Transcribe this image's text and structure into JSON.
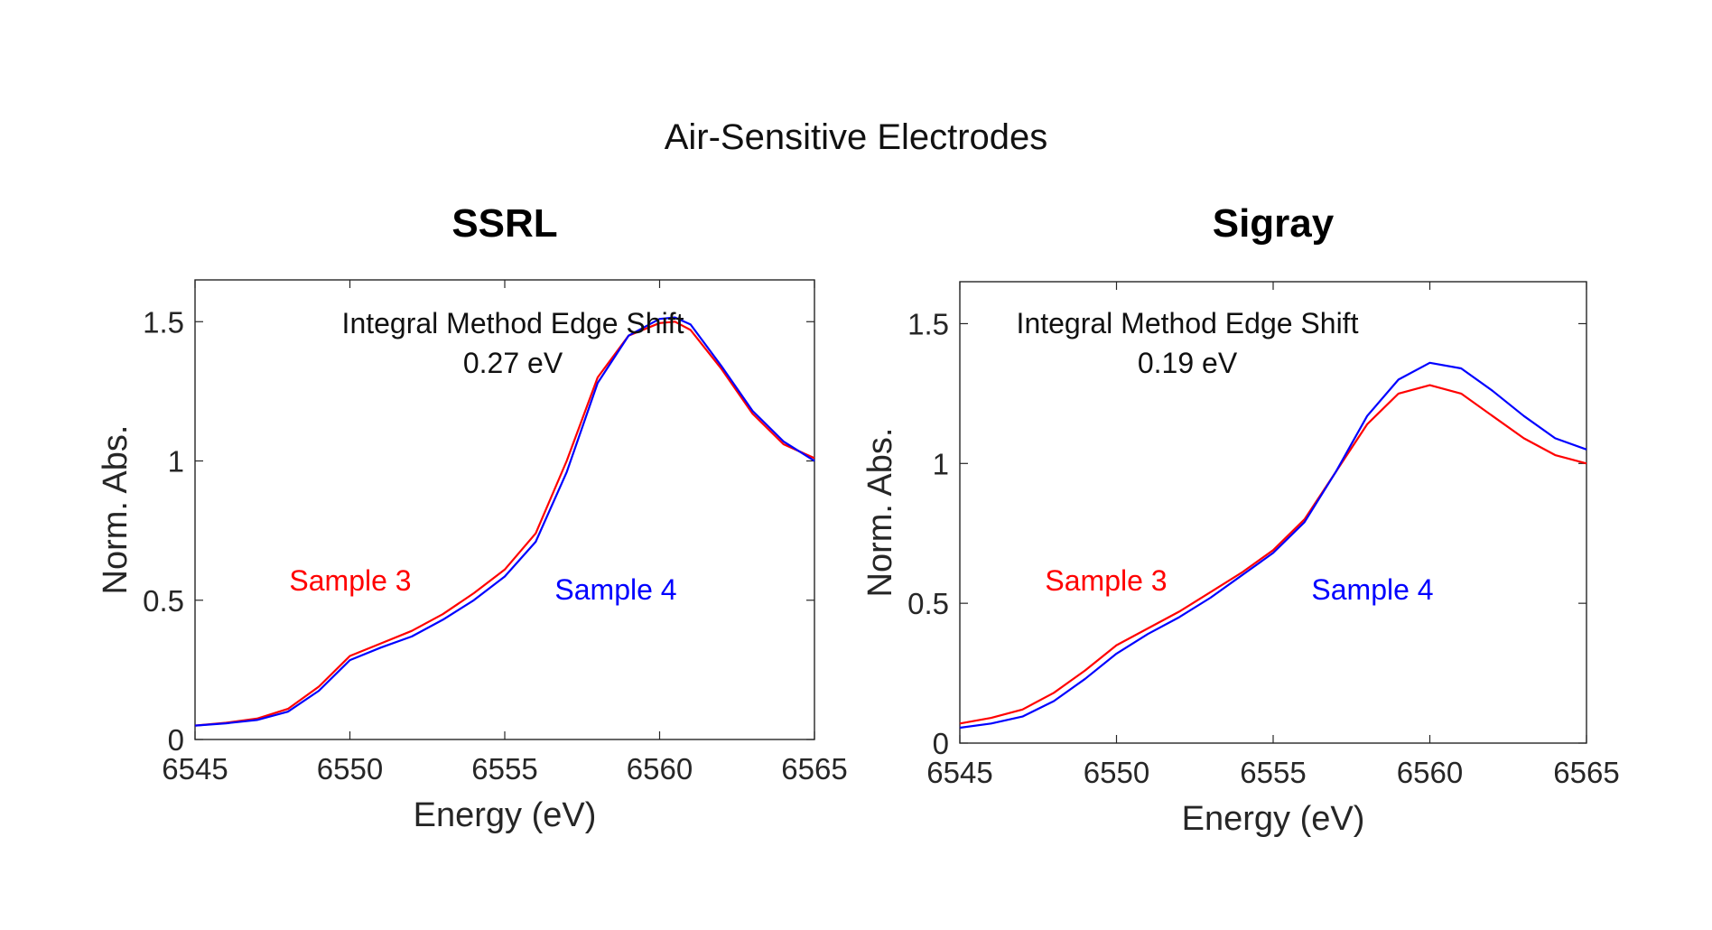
{
  "suptitle": "Air-Sensitive Electrodes",
  "chart_data": [
    {
      "type": "line",
      "title": "SSRL",
      "xlabel": "Energy (eV)",
      "ylabel": "Norm. Abs.",
      "xlim": [
        6545,
        6565
      ],
      "ylim": [
        0,
        1.65
      ],
      "xticks": [
        "6545",
        "6550",
        "6555",
        "6560",
        "6565"
      ],
      "yticks": [
        "0",
        "0.5",
        "1",
        "1.5"
      ],
      "grid": false,
      "annotation_title": "Integral Method Edge Shift",
      "annotation_value": "0.27 eV",
      "labels": {
        "sample3": "Sample 3",
        "sample4": "Sample 4"
      },
      "x": [
        6545,
        6546,
        6547,
        6548,
        6549,
        6550,
        6551,
        6552,
        6553,
        6554,
        6555,
        6556,
        6557,
        6558,
        6559,
        6560,
        6560.5,
        6561,
        6562,
        6563,
        6564,
        6565
      ],
      "series": [
        {
          "name": "Sample 3",
          "color": "#ff0000",
          "values": [
            0.05,
            0.06,
            0.075,
            0.11,
            0.19,
            0.3,
            0.345,
            0.39,
            0.45,
            0.525,
            0.61,
            0.74,
            1.0,
            1.3,
            1.45,
            1.495,
            1.5,
            1.47,
            1.33,
            1.17,
            1.06,
            1.01
          ]
        },
        {
          "name": "Sample 4",
          "color": "#0000ff",
          "values": [
            0.05,
            0.058,
            0.07,
            0.1,
            0.175,
            0.285,
            0.33,
            0.37,
            0.43,
            0.5,
            0.585,
            0.71,
            0.96,
            1.28,
            1.45,
            1.51,
            1.515,
            1.49,
            1.34,
            1.18,
            1.07,
            1.0
          ]
        }
      ]
    },
    {
      "type": "line",
      "title": "Sigray",
      "xlabel": "Energy (eV)",
      "ylabel": "Norm. Abs.",
      "xlim": [
        6545,
        6565
      ],
      "ylim": [
        0,
        1.65
      ],
      "xticks": [
        "6545",
        "6550",
        "6555",
        "6560",
        "6565"
      ],
      "yticks": [
        "0",
        "0.5",
        "1",
        "1.5"
      ],
      "grid": false,
      "annotation_title": "Integral Method Edge Shift",
      "annotation_value": "0.19 eV",
      "labels": {
        "sample3": "Sample 3",
        "sample4": "Sample 4"
      },
      "x": [
        6545,
        6546,
        6547,
        6548,
        6549,
        6550,
        6551,
        6552,
        6553,
        6554,
        6555,
        6556,
        6557,
        6558,
        6559,
        6560,
        6561,
        6562,
        6563,
        6564,
        6565
      ],
      "series": [
        {
          "name": "Sample 3",
          "color": "#ff0000",
          "values": [
            0.07,
            0.09,
            0.12,
            0.18,
            0.26,
            0.35,
            0.41,
            0.47,
            0.54,
            0.61,
            0.69,
            0.8,
            0.97,
            1.14,
            1.25,
            1.28,
            1.25,
            1.17,
            1.09,
            1.03,
            1.0
          ]
        },
        {
          "name": "Sample 4",
          "color": "#0000ff",
          "values": [
            0.055,
            0.07,
            0.095,
            0.15,
            0.23,
            0.32,
            0.39,
            0.45,
            0.52,
            0.6,
            0.68,
            0.79,
            0.97,
            1.17,
            1.3,
            1.36,
            1.34,
            1.26,
            1.17,
            1.09,
            1.05
          ]
        }
      ]
    }
  ]
}
